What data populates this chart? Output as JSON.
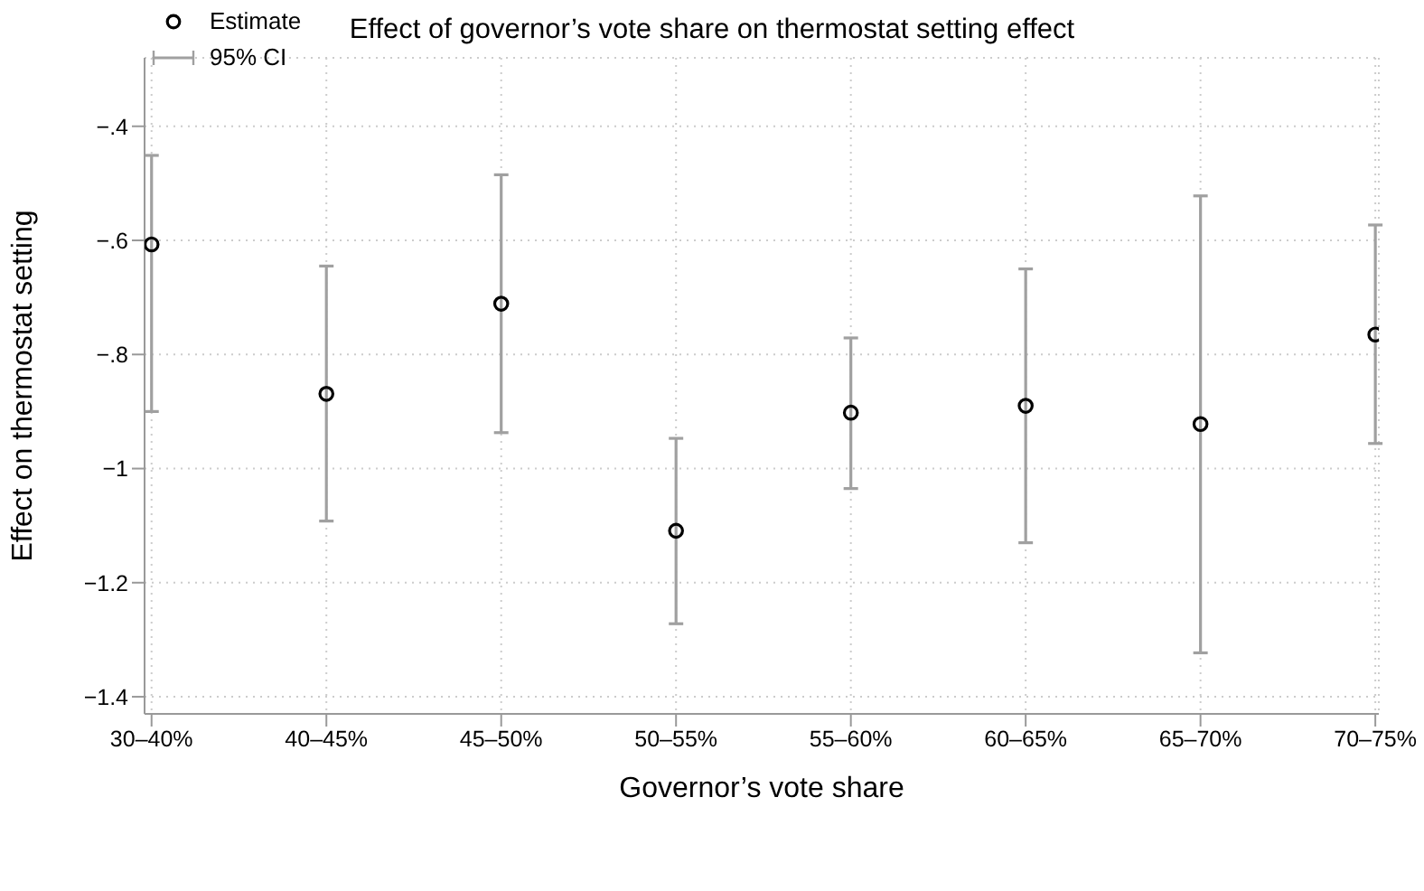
{
  "chart_data": {
    "type": "scatter",
    "title": "Effect of governor’s vote share on thermostat setting effect",
    "xlabel": "Governor’s vote share",
    "ylabel": "Effect on thermostat setting",
    "categories": [
      "30–40%",
      "40–45%",
      "45–50%",
      "50–55%",
      "55–60%",
      "60–65%",
      "65–70%",
      "70–75%"
    ],
    "series": [
      {
        "name": "Estimate",
        "color": "#000000",
        "values": [
          -0.607,
          -0.869,
          -0.711,
          -1.109,
          -0.902,
          -0.89,
          -0.922,
          -0.765
        ],
        "errors": [
          [
            -0.9,
            -0.451
          ],
          [
            -1.092,
            -0.645
          ],
          [
            -0.937,
            -0.485
          ],
          [
            -1.272,
            -0.947
          ],
          [
            -1.035,
            -0.771
          ],
          [
            -1.13,
            -0.65
          ],
          [
            -1.323,
            -0.522
          ],
          [
            -0.956,
            -0.573
          ]
        ]
      }
    ],
    "annotations": [
      "95% CI"
    ],
    "ylim": [
      -1.43,
      -0.28
    ],
    "yticks": [
      {
        "value": -1.4,
        "label": "−1.4"
      },
      {
        "value": -1.2,
        "label": "−1.2"
      },
      {
        "value": -1,
        "label": "−1"
      },
      {
        "value": -0.8,
        "label": "−.8"
      },
      {
        "value": -0.6,
        "label": "−.6"
      },
      {
        "value": -0.4,
        "label": "−.4"
      }
    ],
    "grid": true,
    "legend": "top left",
    "marker": "circle"
  }
}
